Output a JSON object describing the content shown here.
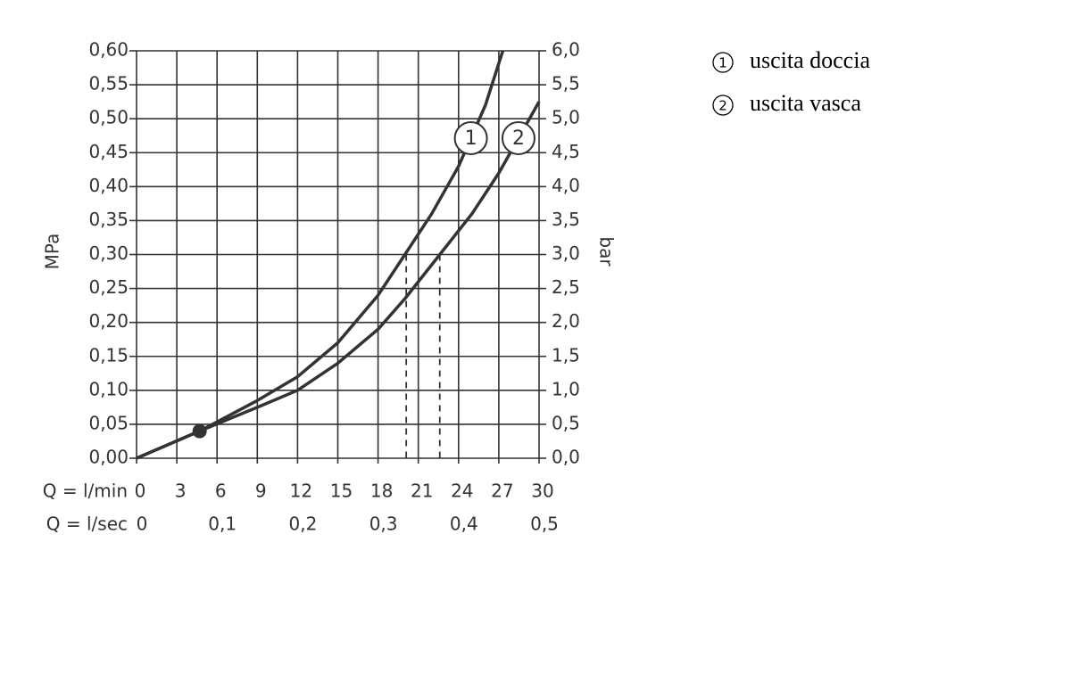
{
  "chart_data": {
    "type": "line",
    "y_label": "MPa",
    "y2_label": "bar",
    "x_label": "Q = l/min",
    "x2_label": "Q = l/sec",
    "xlim": [
      0,
      30
    ],
    "xticks": [
      0,
      3,
      6,
      9,
      12,
      15,
      18,
      21,
      24,
      27,
      30
    ],
    "x2lim": [
      0,
      0.5
    ],
    "x2ticks": [
      0,
      {
        "value": 0.1,
        "label": "0,1"
      },
      {
        "value": 0.2,
        "label": "0,2"
      },
      {
        "value": 0.3,
        "label": "0,3"
      },
      {
        "value": 0.4,
        "label": "0,4"
      },
      {
        "value": 0.5,
        "label": "0,5"
      }
    ],
    "ylim": [
      0,
      0.6
    ],
    "yticks": [
      {
        "value": 0,
        "label": "0,00"
      },
      {
        "value": 0.05,
        "label": "0,05"
      },
      {
        "value": 0.1,
        "label": "0,10"
      },
      {
        "value": 0.15,
        "label": "0,15"
      },
      {
        "value": 0.2,
        "label": "0,20"
      },
      {
        "value": 0.25,
        "label": "0,25"
      },
      {
        "value": 0.3,
        "label": "0,30"
      },
      {
        "value": 0.35,
        "label": "0,35"
      },
      {
        "value": 0.4,
        "label": "0,40"
      },
      {
        "value": 0.45,
        "label": "0,45"
      },
      {
        "value": 0.5,
        "label": "0,50"
      },
      {
        "value": 0.55,
        "label": "0,55"
      },
      {
        "value": 0.6,
        "label": "0,60"
      }
    ],
    "y2lim": [
      0,
      6
    ],
    "y2ticks": [
      {
        "value": 0,
        "label": "0,0"
      },
      {
        "value": 0.5,
        "label": "0,5"
      },
      {
        "value": 1,
        "label": "1,0"
      },
      {
        "value": 1.5,
        "label": "1,5"
      },
      {
        "value": 2,
        "label": "2,0"
      },
      {
        "value": 2.5,
        "label": "2,5"
      },
      {
        "value": 3,
        "label": "3,0"
      },
      {
        "value": 3.5,
        "label": "3,5"
      },
      {
        "value": 4,
        "label": "4,0"
      },
      {
        "value": 4.5,
        "label": "4,5"
      },
      {
        "value": 5,
        "label": "5,0"
      },
      {
        "value": 5.5,
        "label": "5,5"
      },
      {
        "value": 6,
        "label": "6,0"
      }
    ],
    "grid": true,
    "series": [
      {
        "name": "uscita doccia",
        "label": "1",
        "color": "#333333",
        "x": [
          0,
          4.7,
          9,
          12,
          15,
          18,
          20,
          22,
          24,
          26,
          27.3
        ],
        "values": [
          0,
          0.04,
          0.085,
          0.12,
          0.17,
          0.24,
          0.3,
          0.36,
          0.43,
          0.52,
          0.6
        ]
      },
      {
        "name": "uscita vasca",
        "label": "2",
        "color": "#333333",
        "x": [
          0,
          4.7,
          9,
          12,
          15,
          18,
          20,
          22.6,
          25,
          27,
          30
        ],
        "values": [
          0,
          0.04,
          0.075,
          0.1,
          0.14,
          0.19,
          0.235,
          0.3,
          0.36,
          0.42,
          0.525
        ]
      }
    ],
    "marker": {
      "x": 4.7,
      "y": 0.04
    },
    "dashed_drops": [
      {
        "x": 20.1,
        "y": 0.3
      },
      {
        "x": 22.6,
        "y": 0.3
      }
    ]
  }
}
